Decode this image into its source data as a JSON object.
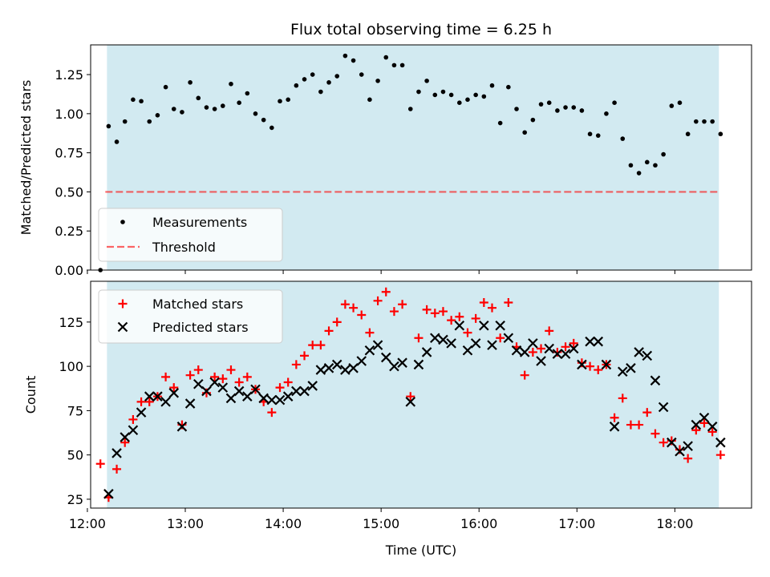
{
  "figure": {
    "title": "Flux total observing time = 6.25 h"
  },
  "colors": {
    "shade": "#add8e6",
    "measurement": "#000000",
    "threshold": "#ff0000",
    "matched": "#ff0000",
    "predicted": "#000000"
  },
  "chart_data": [
    {
      "type": "scatter",
      "panel": "top",
      "title": "Flux total observing time = 6.25 h",
      "ylabel": "Matched/Predicted stars",
      "xlim": [
        "12:02",
        "18:47"
      ],
      "ylim": [
        0,
        1.44
      ],
      "yticks": [
        "0.00",
        "0.25",
        "0.50",
        "0.75",
        "1.00",
        "1.25"
      ],
      "ytick_values": [
        0,
        0.25,
        0.5,
        0.75,
        1.0,
        1.25
      ],
      "shaded_span": [
        "12:12",
        "18:27"
      ],
      "legend": {
        "location": "lower-left",
        "entries": [
          "Measurements",
          "Threshold"
        ]
      },
      "threshold": {
        "name": "Threshold",
        "value": 0.5,
        "x_range": [
          "12:11",
          "18:27"
        ],
        "style": "dashed"
      },
      "series": [
        {
          "name": "Measurements",
          "marker": "dot",
          "points": [
            [
              "12:08",
              0.0
            ],
            [
              "12:13",
              0.92
            ],
            [
              "12:18",
              0.82
            ],
            [
              "12:23",
              0.95
            ],
            [
              "12:28",
              1.09
            ],
            [
              "12:33",
              1.08
            ],
            [
              "12:38",
              0.95
            ],
            [
              "12:43",
              0.99
            ],
            [
              "12:48",
              1.17
            ],
            [
              "12:53",
              1.03
            ],
            [
              "12:58",
              1.01
            ],
            [
              "13:03",
              1.2
            ],
            [
              "13:08",
              1.1
            ],
            [
              "13:13",
              1.04
            ],
            [
              "13:18",
              1.03
            ],
            [
              "13:23",
              1.05
            ],
            [
              "13:28",
              1.19
            ],
            [
              "13:33",
              1.07
            ],
            [
              "13:38",
              1.13
            ],
            [
              "13:43",
              1.0
            ],
            [
              "13:48",
              0.96
            ],
            [
              "13:53",
              0.91
            ],
            [
              "13:58",
              1.08
            ],
            [
              "14:03",
              1.09
            ],
            [
              "14:08",
              1.18
            ],
            [
              "14:13",
              1.22
            ],
            [
              "14:18",
              1.25
            ],
            [
              "14:23",
              1.14
            ],
            [
              "14:28",
              1.2
            ],
            [
              "14:33",
              1.24
            ],
            [
              "14:38",
              1.37
            ],
            [
              "14:43",
              1.34
            ],
            [
              "14:48",
              1.25
            ],
            [
              "14:53",
              1.09
            ],
            [
              "14:58",
              1.21
            ],
            [
              "15:03",
              1.36
            ],
            [
              "15:08",
              1.31
            ],
            [
              "15:13",
              1.31
            ],
            [
              "15:18",
              1.03
            ],
            [
              "15:23",
              1.14
            ],
            [
              "15:28",
              1.21
            ],
            [
              "15:33",
              1.12
            ],
            [
              "15:38",
              1.14
            ],
            [
              "15:43",
              1.12
            ],
            [
              "15:48",
              1.07
            ],
            [
              "15:53",
              1.09
            ],
            [
              "15:58",
              1.12
            ],
            [
              "16:03",
              1.11
            ],
            [
              "16:08",
              1.18
            ],
            [
              "16:13",
              0.94
            ],
            [
              "16:18",
              1.17
            ],
            [
              "16:23",
              1.03
            ],
            [
              "16:28",
              0.88
            ],
            [
              "16:33",
              0.96
            ],
            [
              "16:38",
              1.06
            ],
            [
              "16:43",
              1.07
            ],
            [
              "16:48",
              1.02
            ],
            [
              "16:53",
              1.04
            ],
            [
              "16:58",
              1.04
            ],
            [
              "17:03",
              1.02
            ],
            [
              "17:08",
              0.87
            ],
            [
              "17:13",
              0.86
            ],
            [
              "17:18",
              1.0
            ],
            [
              "17:23",
              1.07
            ],
            [
              "17:28",
              0.84
            ],
            [
              "17:33",
              0.67
            ],
            [
              "17:38",
              0.62
            ],
            [
              "17:43",
              0.69
            ],
            [
              "17:48",
              0.67
            ],
            [
              "17:53",
              0.74
            ],
            [
              "17:58",
              1.05
            ],
            [
              "18:03",
              1.07
            ],
            [
              "18:08",
              0.87
            ],
            [
              "18:13",
              0.95
            ],
            [
              "18:18",
              0.95
            ],
            [
              "18:23",
              0.95
            ],
            [
              "18:28",
              0.87
            ]
          ]
        }
      ]
    },
    {
      "type": "scatter",
      "panel": "bottom",
      "xlabel": "Time (UTC)",
      "ylabel": "Count",
      "xlim": [
        "12:02",
        "18:47"
      ],
      "ylim": [
        20,
        148
      ],
      "xticks": [
        "12:00",
        "13:00",
        "14:00",
        "15:00",
        "16:00",
        "17:00",
        "18:00"
      ],
      "yticks": [
        "25",
        "50",
        "75",
        "100",
        "125"
      ],
      "ytick_values": [
        25,
        50,
        75,
        100,
        125
      ],
      "shaded_span": [
        "12:12",
        "18:27"
      ],
      "legend": {
        "location": "upper-left",
        "entries": [
          "Matched stars",
          "Predicted stars"
        ]
      },
      "times": [
        "12:08",
        "12:13",
        "12:18",
        "12:23",
        "12:28",
        "12:33",
        "12:38",
        "12:43",
        "12:48",
        "12:53",
        "12:58",
        "13:03",
        "13:08",
        "13:13",
        "13:18",
        "13:23",
        "13:28",
        "13:33",
        "13:38",
        "13:43",
        "13:48",
        "13:53",
        "13:58",
        "14:03",
        "14:08",
        "14:13",
        "14:18",
        "14:23",
        "14:28",
        "14:33",
        "14:38",
        "14:43",
        "14:48",
        "14:53",
        "14:58",
        "15:03",
        "15:08",
        "15:13",
        "15:18",
        "15:23",
        "15:28",
        "15:33",
        "15:38",
        "15:43",
        "15:48",
        "15:53",
        "15:58",
        "16:03",
        "16:08",
        "16:13",
        "16:18",
        "16:23",
        "16:28",
        "16:33",
        "16:38",
        "16:43",
        "16:48",
        "16:53",
        "16:58",
        "17:03",
        "17:08",
        "17:13",
        "17:18",
        "17:23",
        "17:28",
        "17:33",
        "17:38",
        "17:43",
        "17:48",
        "17:53",
        "17:58",
        "18:03",
        "18:08",
        "18:13",
        "18:18",
        "18:23",
        "18:28"
      ],
      "series": [
        {
          "name": "Matched stars",
          "marker": "plus",
          "values": [
            45,
            26,
            42,
            57,
            70,
            80,
            80,
            83,
            94,
            88,
            67,
            95,
            98,
            85,
            94,
            93,
            98,
            91,
            94,
            87,
            80,
            74,
            88,
            91,
            101,
            106,
            112,
            112,
            120,
            125,
            135,
            133,
            129,
            119,
            137,
            142,
            131,
            135,
            83,
            116,
            132,
            130,
            131,
            126,
            128,
            119,
            127,
            136,
            133,
            116,
            136,
            111,
            95,
            108,
            110,
            120,
            108,
            111,
            113,
            102,
            100,
            98,
            101,
            71,
            82,
            67,
            67,
            74,
            62,
            57,
            58,
            53,
            48,
            64,
            68,
            63,
            50
          ]
        },
        {
          "name": "Predicted stars",
          "marker": "x",
          "values": [
            null,
            28,
            51,
            60,
            64,
            74,
            83,
            83,
            80,
            85,
            66,
            79,
            90,
            86,
            91,
            88,
            82,
            86,
            83,
            87,
            82,
            81,
            81,
            83,
            86,
            86,
            89,
            98,
            99,
            101,
            98,
            99,
            103,
            109,
            112,
            105,
            100,
            102,
            80,
            101,
            108,
            116,
            115,
            113,
            123,
            109,
            113,
            123,
            112,
            123,
            116,
            109,
            108,
            113,
            103,
            110,
            107,
            107,
            110,
            101,
            114,
            114,
            101,
            66,
            97,
            99,
            108,
            106,
            92,
            77,
            57,
            52,
            55,
            67,
            71,
            66,
            57
          ]
        }
      ]
    }
  ]
}
